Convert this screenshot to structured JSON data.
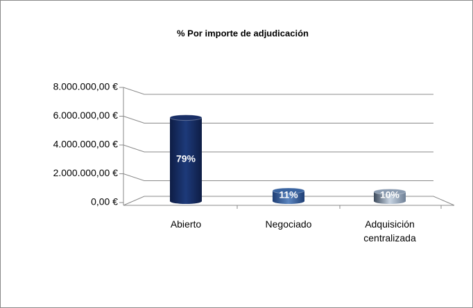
{
  "chart_data": {
    "type": "bar3d",
    "title": "% Por importe de adjudicación",
    "categories": [
      "Abierto",
      "Negociado",
      "Adquisición centralizada"
    ],
    "values": [
      5900000,
      820000,
      750000
    ],
    "share_labels": [
      "79%",
      "11%",
      "10%"
    ],
    "colors": [
      "#1a2f66",
      "#3a64a0",
      "#8a9bb0"
    ],
    "ylim": [
      0,
      8000000
    ],
    "yticks": [
      {
        "value": 0,
        "label": "0,00 €"
      },
      {
        "value": 2000000,
        "label": "2.000.000,00 €"
      },
      {
        "value": 4000000,
        "label": "4.000.000,00 €"
      },
      {
        "value": 6000000,
        "label": "6.000.000,00 €"
      },
      {
        "value": 8000000,
        "label": "8.000.000,00 €"
      }
    ],
    "grid": true
  }
}
